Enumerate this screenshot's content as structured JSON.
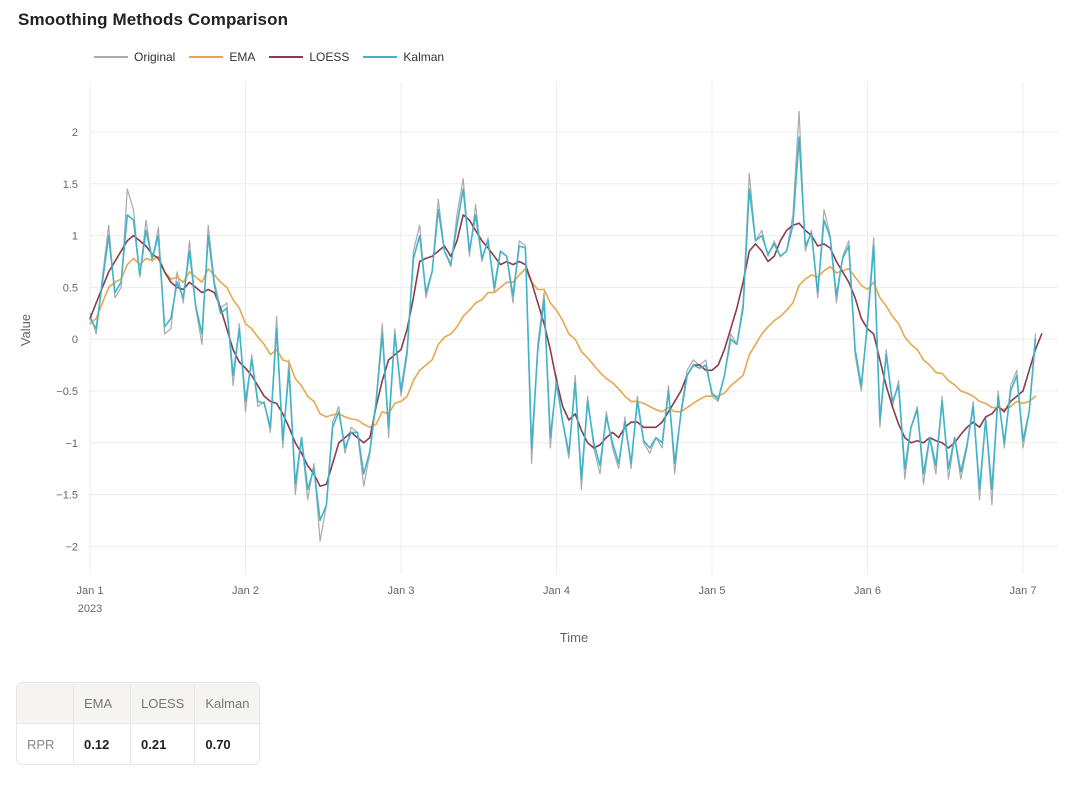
{
  "chart_data": {
    "type": "line",
    "title": "Smoothing Methods Comparison",
    "xlabel": "Time",
    "ylabel": "Value",
    "ylim": [
      -2.2,
      2.4
    ],
    "y_ticks": [
      2,
      1.5,
      1,
      0.5,
      0,
      -0.5,
      -1,
      -1.5,
      -2
    ],
    "y_tick_labels": [
      "2",
      "1.5",
      "1",
      "0.5",
      "0",
      "−0.5",
      "−1",
      "−1.5",
      "−2"
    ],
    "x_domain": [
      0,
      6.22
    ],
    "x_ticks": [
      {
        "x": 0,
        "label": "Jan 1",
        "sublabel": "2023"
      },
      {
        "x": 1,
        "label": "Jan 2"
      },
      {
        "x": 2,
        "label": "Jan 3"
      },
      {
        "x": 3,
        "label": "Jan 4"
      },
      {
        "x": 4,
        "label": "Jan 5"
      },
      {
        "x": 5,
        "label": "Jan 6"
      },
      {
        "x": 6,
        "label": "Jan 7"
      }
    ],
    "x_step": 0.04,
    "legend": [
      {
        "name": "Original",
        "color": "#aaaaaa"
      },
      {
        "name": "EMA",
        "color": "#e6a84e"
      },
      {
        "name": "LOESS",
        "color": "#8a3c4e"
      },
      {
        "name": "Kalman",
        "color": "#40b4c8"
      }
    ],
    "series": [
      {
        "name": "Original",
        "color": "#aaaaaa",
        "values": [
          0.25,
          0.05,
          0.6,
          1.1,
          0.4,
          0.5,
          1.45,
          1.25,
          0.6,
          1.15,
          0.75,
          1.08,
          0.05,
          0.1,
          0.65,
          0.35,
          0.95,
          0.3,
          -0.05,
          1.1,
          0.55,
          0.3,
          0.35,
          -0.45,
          0.15,
          -0.7,
          -0.15,
          -0.65,
          -0.6,
          -0.9,
          0.22,
          -1.05,
          -0.2,
          -1.5,
          -0.95,
          -1.55,
          -1.2,
          -1.95,
          -1.6,
          -0.8,
          -0.65,
          -1.1,
          -0.85,
          -0.9,
          -1.42,
          -1.1,
          -0.6,
          0.15,
          -0.95,
          0.1,
          -0.55,
          -0.15,
          0.85,
          1.1,
          0.4,
          0.65,
          1.35,
          0.85,
          0.7,
          1.2,
          1.55,
          0.8,
          1.3,
          0.75,
          0.98,
          0.45,
          0.85,
          0.8,
          0.35,
          0.95,
          0.9,
          -1.2,
          -0.05,
          0.45,
          -1.05,
          -0.35,
          -0.8,
          -1.15,
          -0.35,
          -1.45,
          -0.55,
          -1.05,
          -1.3,
          -0.7,
          -1.05,
          -1.25,
          -0.75,
          -1.25,
          -0.55,
          -1.0,
          -1.1,
          -0.95,
          -1.05,
          -0.45,
          -1.3,
          -0.7,
          -0.3,
          -0.2,
          -0.25,
          -0.2,
          -0.55,
          -0.6,
          -0.35,
          0.05,
          -0.05,
          0.35,
          1.6,
          0.95,
          1.05,
          0.8,
          0.95,
          0.8,
          0.85,
          1.2,
          2.2,
          0.85,
          1.05,
          0.4,
          1.25,
          1.0,
          0.35,
          0.8,
          0.95,
          -0.15,
          -0.5,
          0.2,
          0.98,
          -0.85,
          -0.1,
          -0.65,
          -0.4,
          -1.35,
          -0.85,
          -0.65,
          -1.4,
          -0.95,
          -1.3,
          -0.55,
          -1.35,
          -0.95,
          -1.35,
          -1.05,
          -0.6,
          -1.55,
          -0.75,
          -1.6,
          -0.5,
          -1.05,
          -0.45,
          -0.3,
          -1.05,
          -0.7,
          0.05
        ]
      },
      {
        "name": "EMA",
        "color": "#e6a84e",
        "values": [
          0.15,
          0.2,
          0.35,
          0.5,
          0.55,
          0.58,
          0.72,
          0.78,
          0.72,
          0.78,
          0.76,
          0.8,
          0.65,
          0.58,
          0.6,
          0.55,
          0.65,
          0.6,
          0.55,
          0.68,
          0.62,
          0.55,
          0.5,
          0.38,
          0.3,
          0.15,
          0.1,
          0.02,
          -0.05,
          -0.15,
          -0.1,
          -0.2,
          -0.22,
          -0.38,
          -0.45,
          -0.55,
          -0.6,
          -0.72,
          -0.75,
          -0.73,
          -0.72,
          -0.75,
          -0.77,
          -0.78,
          -0.82,
          -0.85,
          -0.82,
          -0.7,
          -0.72,
          -0.62,
          -0.6,
          -0.55,
          -0.4,
          -0.3,
          -0.25,
          -0.2,
          -0.05,
          0.02,
          0.05,
          0.12,
          0.22,
          0.28,
          0.35,
          0.38,
          0.45,
          0.45,
          0.5,
          0.55,
          0.55,
          0.62,
          0.68,
          0.55,
          0.48,
          0.48,
          0.35,
          0.28,
          0.18,
          0.05,
          0.0,
          -0.12,
          -0.18,
          -0.25,
          -0.32,
          -0.38,
          -0.42,
          -0.48,
          -0.55,
          -0.6,
          -0.6,
          -0.62,
          -0.65,
          -0.68,
          -0.7,
          -0.66,
          -0.7,
          -0.7,
          -0.66,
          -0.62,
          -0.58,
          -0.55,
          -0.55,
          -0.55,
          -0.52,
          -0.45,
          -0.4,
          -0.35,
          -0.15,
          -0.05,
          0.05,
          0.12,
          0.18,
          0.22,
          0.28,
          0.35,
          0.52,
          0.58,
          0.62,
          0.6,
          0.66,
          0.7,
          0.64,
          0.66,
          0.68,
          0.6,
          0.52,
          0.48,
          0.55,
          0.4,
          0.32,
          0.22,
          0.15,
          0.02,
          -0.05,
          -0.1,
          -0.2,
          -0.25,
          -0.32,
          -0.33,
          -0.4,
          -0.44,
          -0.5,
          -0.52,
          -0.55,
          -0.6,
          -0.62,
          -0.66,
          -0.66,
          -0.68,
          -0.65,
          -0.6,
          -0.62,
          -0.6,
          -0.55
        ]
      },
      {
        "name": "LOESS",
        "color": "#8a3c4e",
        "values": [
          0.2,
          0.35,
          0.5,
          0.65,
          0.75,
          0.85,
          0.95,
          1.0,
          0.95,
          0.9,
          0.82,
          0.78,
          0.65,
          0.55,
          0.5,
          0.48,
          0.55,
          0.5,
          0.45,
          0.48,
          0.45,
          0.3,
          0.1,
          -0.1,
          -0.22,
          -0.28,
          -0.35,
          -0.45,
          -0.55,
          -0.6,
          -0.62,
          -0.72,
          -0.85,
          -1.0,
          -1.1,
          -1.22,
          -1.3,
          -1.42,
          -1.4,
          -1.2,
          -1.0,
          -0.95,
          -0.9,
          -0.95,
          -1.0,
          -0.95,
          -0.65,
          -0.4,
          -0.2,
          -0.15,
          -0.1,
          0.1,
          0.4,
          0.75,
          0.78,
          0.8,
          0.85,
          0.9,
          0.8,
          0.95,
          1.2,
          1.15,
          1.05,
          0.95,
          0.88,
          0.8,
          0.72,
          0.75,
          0.72,
          0.75,
          0.72,
          0.55,
          0.35,
          0.15,
          -0.1,
          -0.4,
          -0.65,
          -0.78,
          -0.72,
          -0.88,
          -1.0,
          -1.05,
          -1.02,
          -0.95,
          -0.9,
          -0.95,
          -0.85,
          -0.8,
          -0.8,
          -0.85,
          -0.85,
          -0.85,
          -0.8,
          -0.7,
          -0.6,
          -0.5,
          -0.35,
          -0.25,
          -0.25,
          -0.3,
          -0.3,
          -0.25,
          -0.1,
          0.1,
          0.3,
          0.55,
          0.85,
          0.92,
          0.85,
          0.75,
          0.8,
          0.95,
          1.05,
          1.1,
          1.12,
          1.05,
          1.0,
          0.9,
          0.92,
          0.88,
          0.75,
          0.65,
          0.55,
          0.4,
          0.2,
          0.1,
          0.05,
          -0.2,
          -0.45,
          -0.65,
          -0.82,
          -0.95,
          -1.0,
          -0.98,
          -1.0,
          -0.95,
          -0.98,
          -1.0,
          -1.05,
          -1.0,
          -0.92,
          -0.85,
          -0.8,
          -0.85,
          -0.75,
          -0.72,
          -0.65,
          -0.7,
          -0.6,
          -0.55,
          -0.5,
          -0.3,
          -0.1,
          0.05
        ]
      },
      {
        "name": "Kalman",
        "color": "#40b4c8",
        "values": [
          0.2,
          0.1,
          0.55,
          1.0,
          0.45,
          0.55,
          1.2,
          1.15,
          0.62,
          1.05,
          0.78,
          1.0,
          0.12,
          0.2,
          0.55,
          0.4,
          0.85,
          0.32,
          0.05,
          1.0,
          0.52,
          0.25,
          0.3,
          -0.35,
          0.1,
          -0.6,
          -0.2,
          -0.6,
          -0.62,
          -0.85,
          0.1,
          -0.98,
          -0.3,
          -1.4,
          -0.95,
          -1.45,
          -1.25,
          -1.75,
          -1.6,
          -0.85,
          -0.7,
          -1.05,
          -0.9,
          -0.9,
          -1.3,
          -1.08,
          -0.6,
          0.05,
          -0.85,
          0.05,
          -0.5,
          -0.1,
          0.78,
          1.0,
          0.45,
          0.65,
          1.25,
          0.85,
          0.72,
          1.1,
          1.45,
          0.85,
          1.2,
          0.78,
          0.95,
          0.5,
          0.85,
          0.8,
          0.42,
          0.9,
          0.88,
          -1.05,
          -0.1,
          0.38,
          -0.95,
          -0.42,
          -0.8,
          -1.1,
          -0.42,
          -1.35,
          -0.6,
          -1.0,
          -1.22,
          -0.75,
          -1.0,
          -1.2,
          -0.8,
          -1.2,
          -0.6,
          -0.98,
          -1.05,
          -0.95,
          -1.0,
          -0.5,
          -1.2,
          -0.72,
          -0.35,
          -0.25,
          -0.28,
          -0.25,
          -0.52,
          -0.58,
          -0.35,
          0.0,
          -0.05,
          0.3,
          1.45,
          0.95,
          1.0,
          0.82,
          0.92,
          0.8,
          0.85,
          1.1,
          1.95,
          0.9,
          1.02,
          0.45,
          1.15,
          0.98,
          0.42,
          0.78,
          0.9,
          -0.1,
          -0.45,
          0.15,
          0.9,
          -0.78,
          -0.15,
          -0.6,
          -0.45,
          -1.25,
          -0.85,
          -0.68,
          -1.3,
          -0.95,
          -1.22,
          -0.6,
          -1.25,
          -0.95,
          -1.28,
          -1.02,
          -0.65,
          -1.45,
          -0.78,
          -1.45,
          -0.55,
          -1.0,
          -0.5,
          -0.35,
          -0.98,
          -0.7,
          0.0
        ]
      }
    ]
  },
  "rpr_table": {
    "row_label": "RPR",
    "headers": [
      "EMA",
      "LOESS",
      "Kalman"
    ],
    "values": [
      "0.12",
      "0.21",
      "0.70"
    ]
  }
}
